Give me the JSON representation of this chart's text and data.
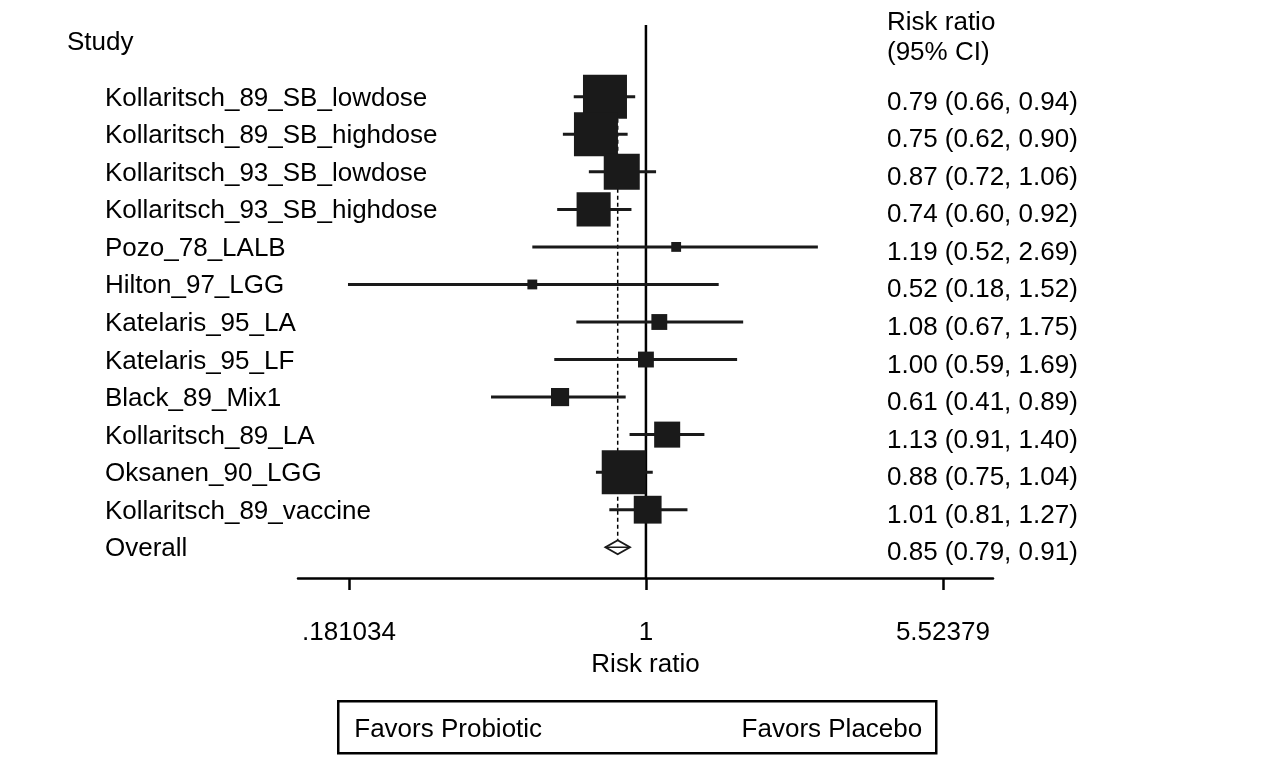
{
  "chart_data": {
    "type": "bubble",
    "ylabel": "Study",
    "xlabel": "Risk ratio",
    "orientation": "horizontal",
    "log": "x",
    "grid": false,
    "categories": [
      "Kollaritsch_89_SB_lowdose",
      "Kollaritsch_89_SB_highdose",
      "Kollaritsch_93_SB_lowdose",
      "Kollaritsch_93_SB_highdose",
      "Pozo_78_LALB",
      "Hilton_97_LGG",
      "Katelaris_95_LA",
      "Katelaris_95_LF",
      "Black_89_Mix1",
      "Kollaritsch_89_LA",
      "Oksanen_90_LGG",
      "Kollaritsch_89_vaccine",
      "Overall"
    ],
    "xlim": [
      0.135,
      7.37
    ],
    "xticks": [
      {
        "value": 0.181034,
        "label": ".181034"
      },
      1,
      5.52379
    ],
    "series": [
      {
        "marker": "square",
        "color": "#1a1a1a",
        "values": [
          0.79,
          0.75,
          0.87,
          0.74,
          1.19,
          0.52,
          1.08,
          1.0,
          0.61,
          1.13,
          0.88,
          1.01,
          null
        ],
        "errors": [
          [
            0.66,
            0.94
          ],
          [
            0.62,
            0.9
          ],
          [
            0.72,
            1.06
          ],
          [
            0.6,
            0.92
          ],
          [
            0.52,
            2.69
          ],
          [
            0.18,
            1.52
          ],
          [
            0.67,
            1.75
          ],
          [
            0.59,
            1.69
          ],
          [
            0.41,
            0.89
          ],
          [
            0.91,
            1.4
          ],
          [
            0.75,
            1.04
          ],
          [
            0.81,
            1.27
          ],
          null
        ],
        "sizes": [
          1,
          1,
          0.67,
          0.6,
          0.05,
          0.05,
          0.13,
          0.13,
          0.17,
          0.35,
          1,
          0.4,
          null
        ]
      },
      {
        "type": "scatter",
        "marker": "diamond",
        "color": "#1a1a1a",
        "values": [
          null,
          null,
          null,
          null,
          null,
          null,
          null,
          null,
          null,
          null,
          null,
          null,
          0.85
        ],
        "errors": [
          null,
          null,
          null,
          null,
          null,
          null,
          null,
          null,
          null,
          null,
          null,
          null,
          [
            0.79,
            0.91
          ]
        ]
      }
    ],
    "ref_lines": [
      {
        "axis": "x",
        "value": 1,
        "line_style": "solid",
        "color": "#000000"
      },
      {
        "axis": "x",
        "value": 0.85,
        "line_style": "dashed",
        "color": "#000000"
      }
    ],
    "annotations": [
      "Risk ratio\n(95% CI)",
      "0.79 (0.66, 0.94)",
      "0.75 (0.62, 0.90)",
      "0.87 (0.72, 1.06)",
      "0.74 (0.60, 0.92)",
      "1.19 (0.52, 2.69)",
      "0.52 (0.18, 1.52)",
      "1.08 (0.67, 1.75)",
      "1.00 (0.59, 1.69)",
      "0.61 (0.41, 0.89)",
      "1.13 (0.91, 1.40)",
      "0.88 (0.75, 1.04)",
      "1.01 (0.81, 1.27)",
      "0.85 (0.79, 0.91)",
      "Favors Probiotic",
      "Favors Placebo"
    ]
  }
}
